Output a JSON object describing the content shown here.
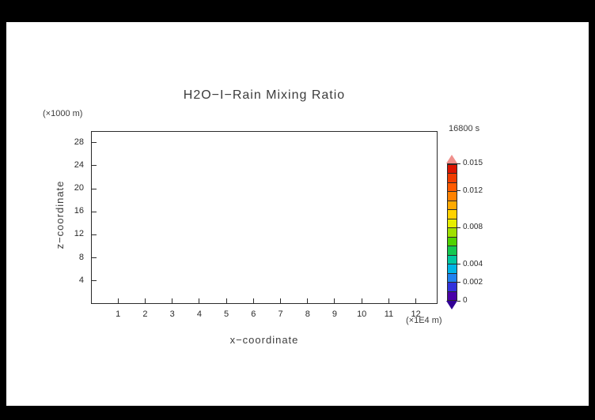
{
  "colors": {
    "background": "#000000",
    "canvas": "#ffffff",
    "axis": "#2a2a2a",
    "text": "#3c3c3c"
  },
  "chart_data": {
    "type": "contour",
    "title": "H2O−I−Rain Mixing Ratio",
    "timestamp": "16800 s",
    "xlabel": "x−coordinate",
    "ylabel": "z−coordinate",
    "x_unit": "(×1E4 m)",
    "y_unit": "(×1000 m)",
    "xlim": [
      0,
      12.8
    ],
    "ylim": [
      0,
      30
    ],
    "x_ticks": [
      1,
      2,
      3,
      4,
      5,
      6,
      7,
      8,
      9,
      10,
      11,
      12
    ],
    "y_ticks": [
      4,
      8,
      12,
      16,
      20,
      24,
      28
    ],
    "grid": false,
    "legend_position": "right-colorbar",
    "series": [],
    "colorbar": {
      "min": 0,
      "max": 0.015,
      "over_color": "#f0908c",
      "under_color": "#320096",
      "ticks": [
        {
          "label": "0.015",
          "value": 0.015
        },
        {
          "label": "0.012",
          "value": 0.012
        },
        {
          "label": "0.008",
          "value": 0.008
        },
        {
          "label": "0.004",
          "value": 0.004
        },
        {
          "label": "0.002",
          "value": 0.002
        },
        {
          "label": "0",
          "value": 0
        }
      ],
      "segments": [
        {
          "from": 0.0,
          "to": 0.001,
          "color": "#4a00a8"
        },
        {
          "from": 0.001,
          "to": 0.002,
          "color": "#3232dc"
        },
        {
          "from": 0.002,
          "to": 0.003,
          "color": "#2082f0"
        },
        {
          "from": 0.003,
          "to": 0.004,
          "color": "#00b4e6"
        },
        {
          "from": 0.004,
          "to": 0.005,
          "color": "#00c8a0"
        },
        {
          "from": 0.005,
          "to": 0.006,
          "color": "#14c850"
        },
        {
          "from": 0.006,
          "to": 0.007,
          "color": "#50d200"
        },
        {
          "from": 0.007,
          "to": 0.008,
          "color": "#a0e000"
        },
        {
          "from": 0.008,
          "to": 0.009,
          "color": "#e6ee00"
        },
        {
          "from": 0.009,
          "to": 0.01,
          "color": "#ffd200"
        },
        {
          "from": 0.01,
          "to": 0.011,
          "color": "#ffaa00"
        },
        {
          "from": 0.011,
          "to": 0.012,
          "color": "#ff8200"
        },
        {
          "from": 0.012,
          "to": 0.013,
          "color": "#ff5a00"
        },
        {
          "from": 0.013,
          "to": 0.014,
          "color": "#f03c00"
        },
        {
          "from": 0.014,
          "to": 0.015,
          "color": "#dc1400"
        }
      ]
    }
  }
}
